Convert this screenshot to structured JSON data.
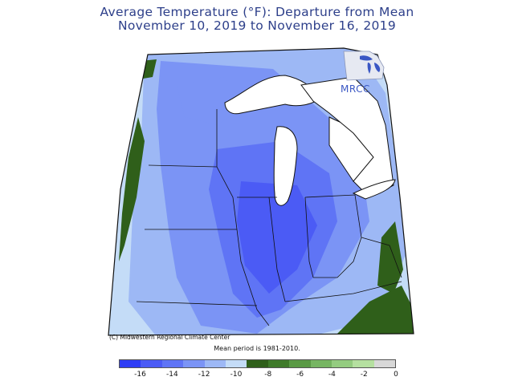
{
  "map": {
    "title": "Average Temperature (°F): Departure from Mean",
    "subtitle": "November 10, 2019 to November 16, 2019",
    "credit": "(C) Midwestern Regional Climate Center",
    "mean_period": "Mean period is 1981-2010.",
    "logo_text": "MRCC"
  },
  "legend": {
    "colors": [
      "#2e3df5",
      "#4b5bf5",
      "#5f74f5",
      "#7b94f5",
      "#9db8f5",
      "#c4dcf7",
      "#2f5f1a",
      "#3f7a2a",
      "#5a9a45",
      "#76b562",
      "#94cc80",
      "#b5e0a0",
      "#d8d8d8"
    ],
    "ticks": [
      "-16",
      "-14",
      "-12",
      "-10",
      "-8",
      "-6",
      "-4",
      "-2",
      "0"
    ]
  },
  "colors": {
    "title": "#2d3f8a",
    "map_outline": "#111111",
    "lake": "#ffffff",
    "dark_blue": "#4b5bf5",
    "mid_blue": "#7b94f5",
    "light_blue": "#9db8f5",
    "pale_blue": "#c4dcf7",
    "green": "#2f5f1a"
  }
}
